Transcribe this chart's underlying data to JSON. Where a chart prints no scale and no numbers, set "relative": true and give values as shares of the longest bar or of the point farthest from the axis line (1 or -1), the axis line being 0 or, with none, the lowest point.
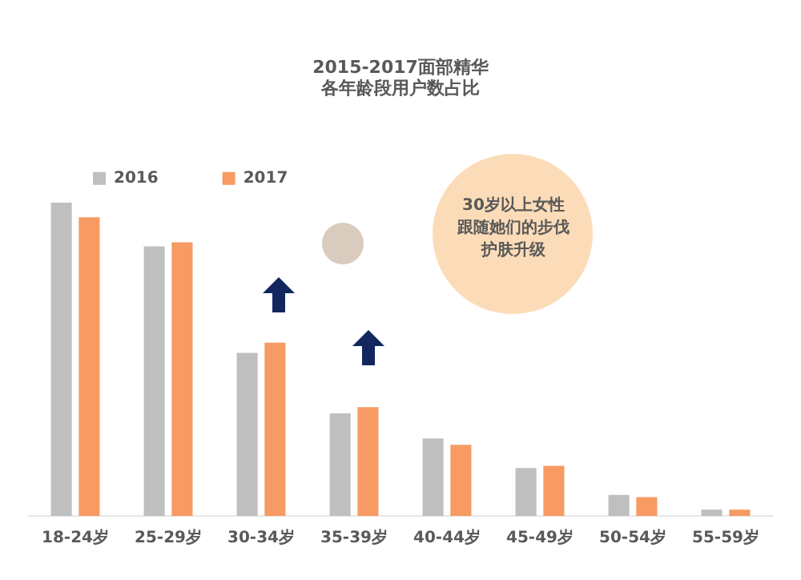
{
  "chart_data": {
    "type": "bar",
    "title": [
      "2015-2017面部精华",
      "各年龄段用户数占比"
    ],
    "categories": [
      "18-24岁",
      "25-29岁",
      "30-34岁",
      "35-39岁",
      "40-44岁",
      "45-49岁",
      "50-54岁",
      "55-59岁"
    ],
    "relative": true,
    "legend": "top",
    "grid": false,
    "series": [
      {
        "name": "2016",
        "color": "#bfbfbf",
        "values": [
          1,
          0.86,
          0.52,
          0.327,
          0.247,
          0.153,
          0.067,
          0.02
        ]
      },
      {
        "name": "2017",
        "color": "#f79a63",
        "values": [
          0.953,
          0.873,
          0.553,
          0.347,
          0.227,
          0.16,
          0.06,
          0.02
        ]
      }
    ],
    "annotations": [
      "30岁以上女性跟随她们的步伐护肤升级"
    ]
  }
}
